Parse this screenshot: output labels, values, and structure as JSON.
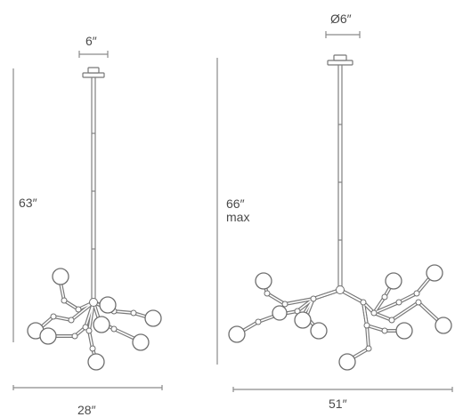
{
  "left_fixture": {
    "canopy_width": "6″",
    "height": "63″",
    "width": "28″"
  },
  "right_fixture": {
    "canopy_diameter": "Ø6″",
    "height_value": "66″",
    "height_note": "max",
    "width": "51″"
  },
  "colors": {
    "line": "#8a8a8a",
    "outline": "#6f6f6f",
    "text": "#4a4a4a"
  }
}
